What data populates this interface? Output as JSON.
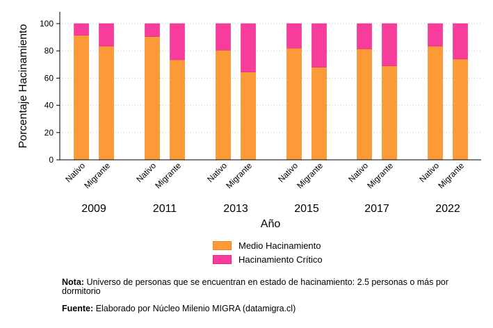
{
  "chart_data": {
    "type": "bar",
    "stacked": true,
    "ylabel": "Porcentaje Hacinamiento",
    "xlabel": "Año",
    "ylim": [
      0,
      100
    ],
    "yticks": [
      0,
      20,
      40,
      60,
      80,
      100
    ],
    "grid": "horizontal dotted",
    "groups": [
      {
        "year": "2009",
        "bars": [
          {
            "label": "Nativo",
            "medio": 91.5,
            "critico": 8.5
          },
          {
            "label": "Migrante",
            "medio": 83.5,
            "critico": 16.5
          }
        ]
      },
      {
        "year": "2011",
        "bars": [
          {
            "label": "Nativo",
            "medio": 90.5,
            "critico": 9.5
          },
          {
            "label": "Migrante",
            "medio": 73.5,
            "critico": 26.5
          }
        ]
      },
      {
        "year": "2013",
        "bars": [
          {
            "label": "Nativo",
            "medio": 80.5,
            "critico": 19.5
          },
          {
            "label": "Migrante",
            "medio": 64.5,
            "critico": 35.5
          }
        ]
      },
      {
        "year": "2015",
        "bars": [
          {
            "label": "Nativo",
            "medio": 82.0,
            "critico": 18.0
          },
          {
            "label": "Migrante",
            "medio": 68.0,
            "critico": 32.0
          }
        ]
      },
      {
        "year": "2017",
        "bars": [
          {
            "label": "Nativo",
            "medio": 81.5,
            "critico": 18.5
          },
          {
            "label": "Migrante",
            "medio": 69.0,
            "critico": 31.0
          }
        ]
      },
      {
        "year": "2022",
        "bars": [
          {
            "label": "Nativo",
            "medio": 83.5,
            "critico": 16.5
          },
          {
            "label": "Migrante",
            "medio": 74.0,
            "critico": 26.0
          }
        ]
      }
    ],
    "series": [
      {
        "name": "Medio Hacinamiento",
        "key": "medio",
        "color": "#FB9A36"
      },
      {
        "name": "Hacinamiento Crítico",
        "key": "critico",
        "color": "#F73C9C"
      }
    ]
  },
  "notes": {
    "nota_label": "Nota:",
    "nota_text": "Universo de personas que se encuentran en estado de hacinamiento: 2.5 personas o más por dormitorio",
    "fuente_label": "Fuente:",
    "fuente_text": "Elaborado por Núcleo Milenio MIGRA (datamigra.cl)"
  }
}
